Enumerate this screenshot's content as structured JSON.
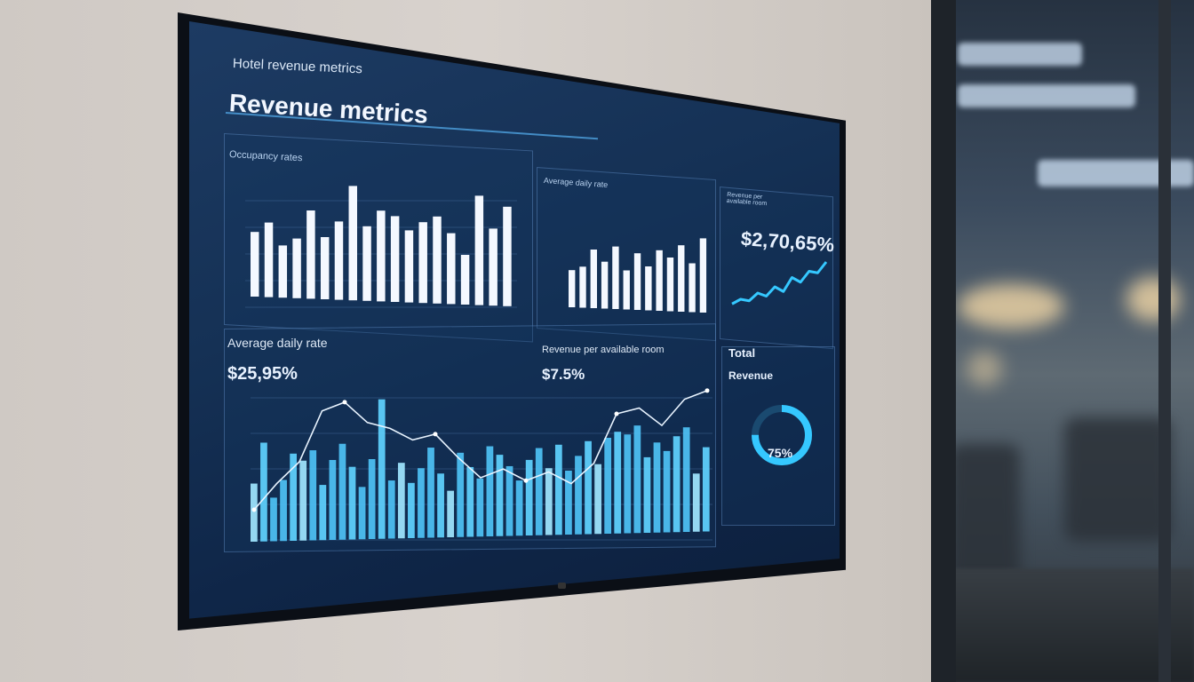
{
  "dashboard": {
    "title": "Hotel revenue metrics",
    "heading": "Revenue metrics",
    "occupancy": {
      "label": "Occupancy rates",
      "chart_data": {
        "type": "bar",
        "values": [
          52,
          60,
          42,
          48,
          71,
          50,
          63,
          92,
          60,
          73,
          69,
          58,
          65,
          70,
          57,
          40,
          88,
          62,
          80
        ]
      }
    },
    "adr_small": {
      "label": "Average daily rate",
      "chart_data": {
        "type": "bar",
        "values": [
          38,
          42,
          60,
          48,
          64,
          40,
          58,
          45,
          62,
          55,
          68,
          50,
          76
        ]
      }
    },
    "revpar_stat": {
      "label": "Revenue per available room",
      "value": "$2,70,65%",
      "trend": [
        18,
        24,
        22,
        32,
        28,
        40,
        34,
        52,
        46,
        60,
        58,
        72
      ]
    },
    "adr": {
      "label": "Average daily rate",
      "value": "$25,95%"
    },
    "revpar": {
      "label": "Revenue per available room",
      "value": "$7.5%"
    },
    "combo": {
      "chart_data": {
        "type": "bar",
        "bars": [
          40,
          68,
          30,
          42,
          60,
          55,
          62,
          38,
          55,
          66,
          50,
          36,
          55,
          96,
          40,
          52,
          38,
          48,
          62,
          44,
          32,
          58,
          48,
          40,
          62,
          56,
          48,
          38,
          52,
          60,
          46,
          62,
          44,
          54,
          64,
          48,
          66,
          70,
          68,
          74,
          52,
          62,
          56,
          66,
          72,
          40,
          58
        ],
        "line": [
          22,
          40,
          55,
          90,
          96,
          82,
          78,
          70,
          74,
          58,
          44,
          50,
          42,
          48,
          40,
          54,
          88,
          92,
          80,
          98,
          104
        ]
      }
    },
    "total": {
      "label_1": "Total",
      "label_2": "Revenue",
      "value": "75%",
      "percent": 75
    }
  },
  "colors": {
    "bar_white": "#f4f8ff",
    "bar_cyan": "#5fd2ff",
    "accent": "#35c8ff"
  }
}
